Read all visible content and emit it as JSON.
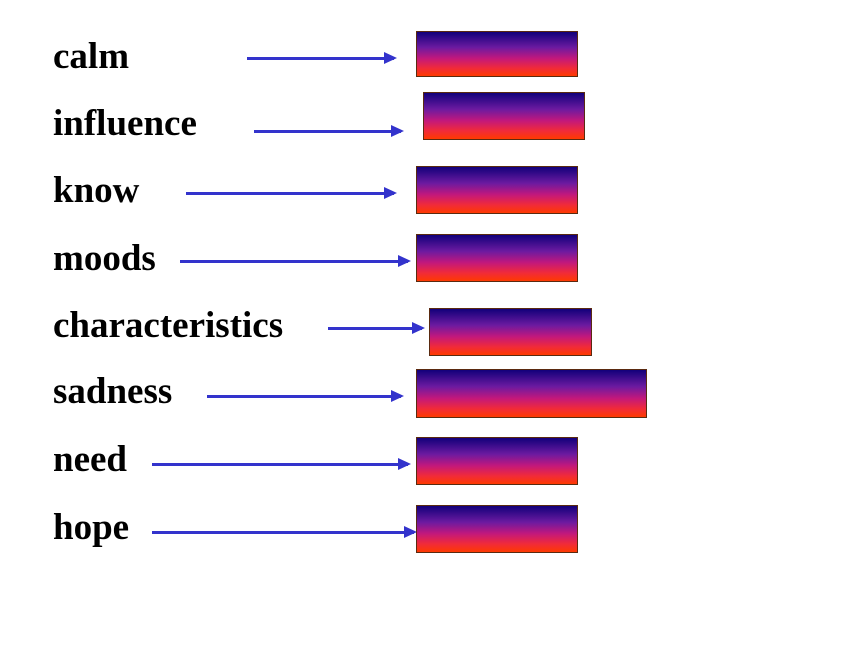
{
  "words": [
    {
      "id": "calm",
      "text": "calm"
    },
    {
      "id": "influence",
      "text": "influence"
    },
    {
      "id": "know",
      "text": "know"
    },
    {
      "id": "moods",
      "text": "moods"
    },
    {
      "id": "characteristics",
      "text": "characteristics"
    },
    {
      "id": "sadness",
      "text": "sadness"
    },
    {
      "id": "need",
      "text": "need"
    },
    {
      "id": "hope",
      "text": "hope"
    }
  ],
  "colors": {
    "arrow": "#3333cc",
    "box_top": "#12007a",
    "box_bottom": "#ff3a00"
  }
}
